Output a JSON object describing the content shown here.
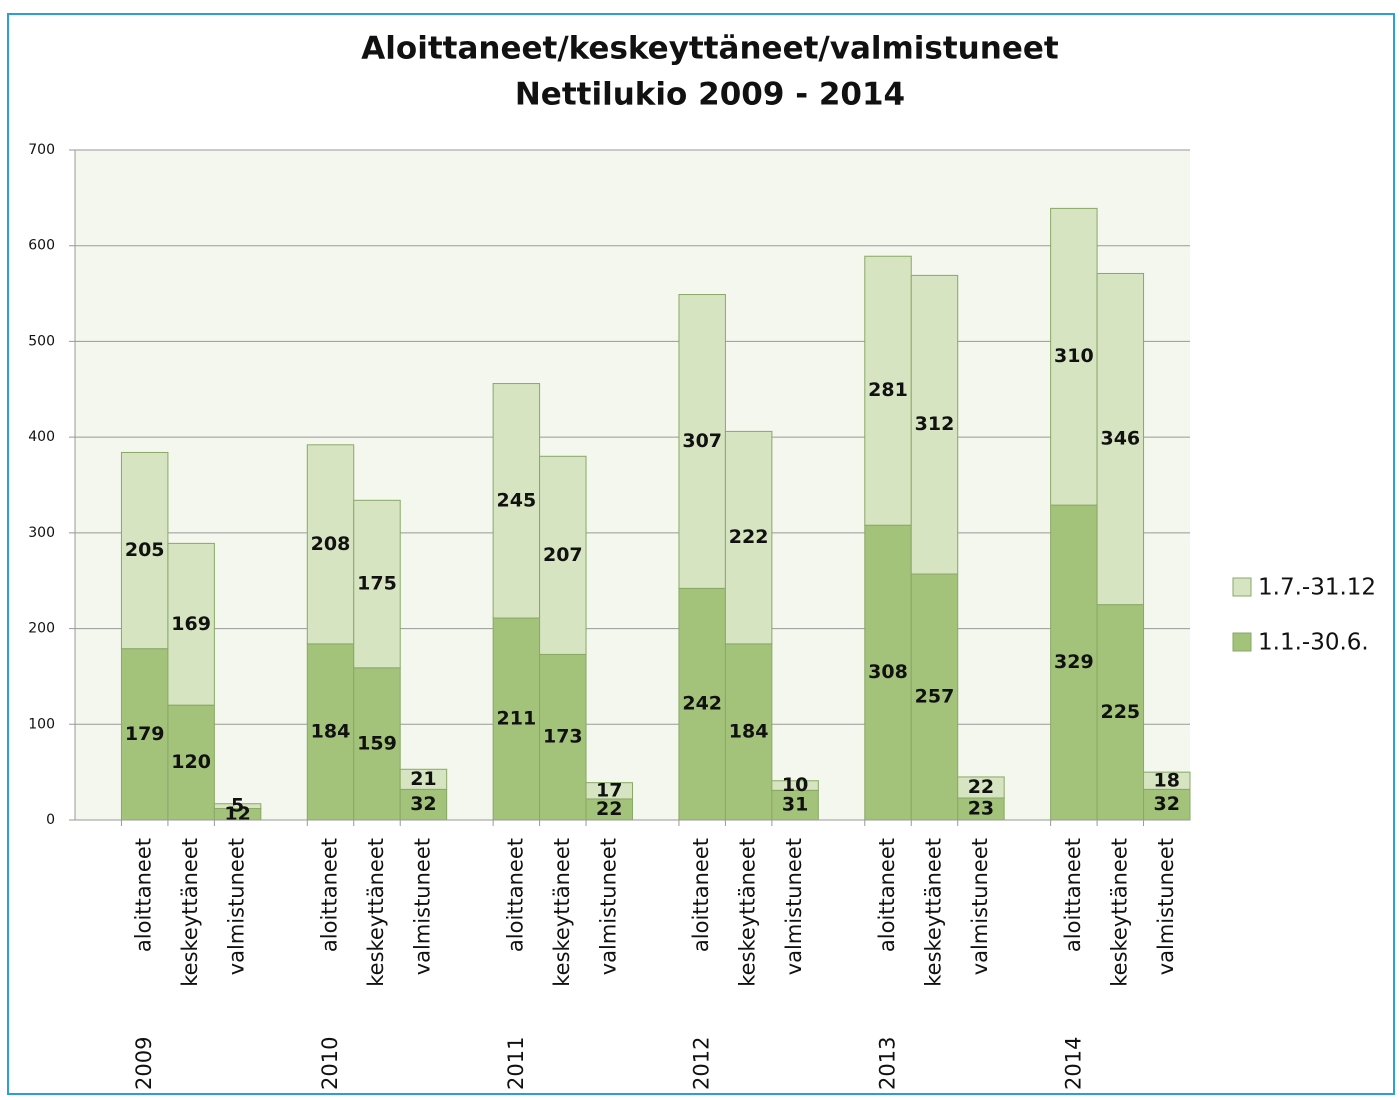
{
  "chart_data": {
    "type": "stacked_bar",
    "title": "Aloittaneet/keskeyttäneet/valmistuneet",
    "subtitle": "Nettilukio 2009 - 2014",
    "groups": [
      "2009",
      "2010",
      "2011",
      "2012",
      "2013",
      "2014"
    ],
    "categories": [
      "aloittaneet",
      "keskeyttäneet",
      "valmistuneet",
      "aloittaneet",
      "keskeyttäneet",
      "valmistuneet",
      "aloittaneet",
      "keskeyttäneet",
      "valmistuneet",
      "aloittaneet",
      "keskeyttäneet",
      "valmistuneet",
      "aloittaneet",
      "keskeyttäneet",
      "valmistuneet",
      "aloittaneet",
      "keskeyttäneet",
      "valmistuneet"
    ],
    "series": [
      {
        "name": "1.1.-30.6.",
        "color": "#a3c27a",
        "values": [
          179,
          120,
          12,
          184,
          159,
          32,
          211,
          173,
          22,
          242,
          184,
          31,
          308,
          257,
          23,
          329,
          225,
          32
        ]
      },
      {
        "name": "1.7.-31.12",
        "color": "#d6e4c1",
        "values": [
          205,
          169,
          5,
          208,
          175,
          21,
          245,
          207,
          17,
          307,
          222,
          10,
          281,
          312,
          22,
          310,
          346,
          18
        ]
      }
    ],
    "ylim": [
      0,
      700
    ],
    "yticks": [
      0,
      100,
      200,
      300,
      400,
      500,
      600,
      700
    ],
    "grid": true,
    "legend": "right"
  }
}
